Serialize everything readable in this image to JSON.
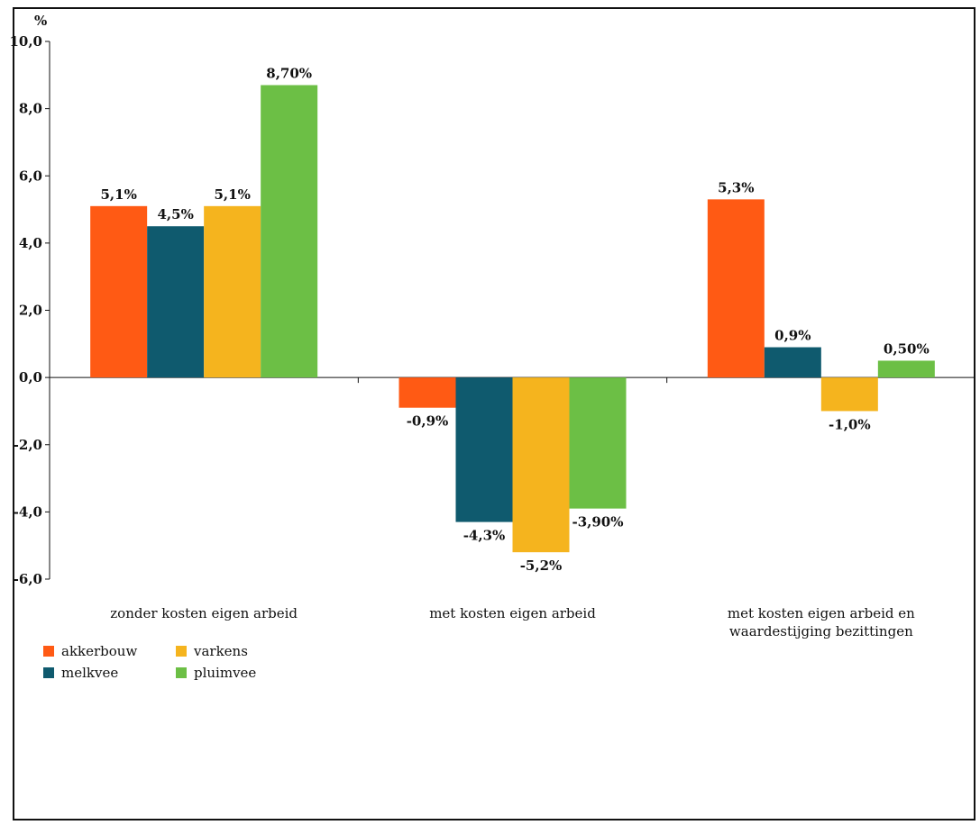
{
  "chart_data": {
    "type": "bar",
    "title": "",
    "ylabel": "%",
    "xlabel": "",
    "ylim": [
      -6,
      10
    ],
    "yticks": [
      -6,
      -4,
      -2,
      0,
      2,
      4,
      6,
      8,
      10
    ],
    "ytick_labels": [
      "-6,0",
      "-4,0",
      "-2,0",
      "0,0",
      "2,0",
      "4,0",
      "6,0",
      "8,0",
      "10,0"
    ],
    "grid": false,
    "legend_position": "bottom-left",
    "categories": [
      "zonder kosten eigen arbeid",
      "met kosten eigen arbeid",
      "met kosten eigen arbeid en waardestijging bezittingen"
    ],
    "category_lines": [
      [
        "zonder kosten eigen arbeid"
      ],
      [
        "met kosten eigen arbeid"
      ],
      [
        "met kosten eigen arbeid en",
        "waardestijging bezittingen"
      ]
    ],
    "series": [
      {
        "name": "akkerbouw",
        "color": "#ff5a14",
        "values": [
          5.1,
          -0.9,
          5.3
        ],
        "labels": [
          "5,1%",
          "-0,9%",
          "5,3%"
        ]
      },
      {
        "name": "melkvee",
        "color": "#0f5a6e",
        "values": [
          4.5,
          -4.3,
          0.9
        ],
        "labels": [
          "4,5%",
          "-4,3%",
          "0,9%"
        ]
      },
      {
        "name": "varkens",
        "color": "#f5b41e",
        "values": [
          5.1,
          -5.2,
          -1.0
        ],
        "labels": [
          "5,1%",
          "-5,2%",
          "-1,0%"
        ]
      },
      {
        "name": "pluimvee",
        "color": "#6cbf45",
        "values": [
          8.7,
          -3.9,
          0.5
        ],
        "labels": [
          "8,70%",
          "-3,90%",
          "0,50%"
        ]
      }
    ]
  }
}
